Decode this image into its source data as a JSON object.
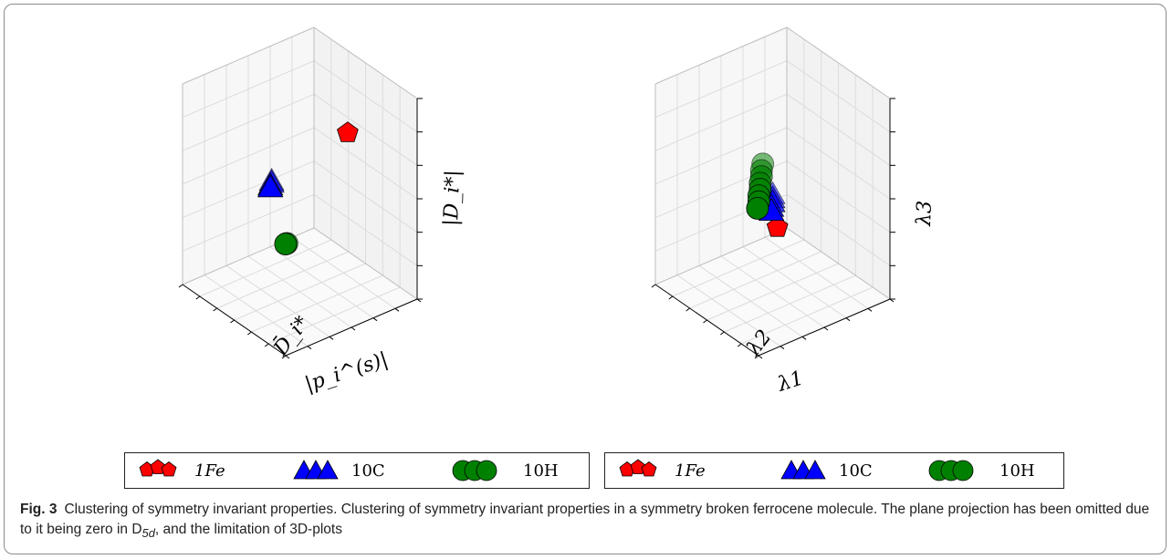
{
  "chart_data": [
    {
      "type": "scatter3d",
      "axis_labels": {
        "x": "|p_i^(s)|",
        "y": "D̄_i*",
        "z": "|D_i*|"
      },
      "grid": true,
      "series": [
        {
          "name": "1Fe",
          "marker": "pentagon",
          "color": "#ff0000",
          "points": [
            [
              0.45,
              0.9,
              0.92
            ]
          ]
        },
        {
          "name": "10C",
          "marker": "triangle",
          "color": "#0000ff",
          "points": [
            [
              0.95,
              0.8,
              0.78
            ],
            [
              0.95,
              0.8,
              0.77
            ],
            [
              0.96,
              0.8,
              0.76
            ],
            [
              0.96,
              0.8,
              0.75
            ]
          ]
        },
        {
          "name": "10H",
          "marker": "circle",
          "color": "#008000",
          "points": [
            [
              0.3,
              0.12,
              0.05
            ],
            [
              0.31,
              0.12,
              0.05
            ]
          ]
        }
      ]
    },
    {
      "type": "scatter3d",
      "axis_labels": {
        "x": "λ1",
        "y": "λ2",
        "z": "λ3"
      },
      "grid": true,
      "series": [
        {
          "name": "1Fe",
          "marker": "pentagon",
          "color": "#ff0000",
          "points": [
            [
              0.15,
              0.1,
              0.08
            ]
          ]
        },
        {
          "name": "10C",
          "marker": "triangle",
          "color": "#0000ff",
          "points": [
            [
              0.5,
              0.5,
              0.48
            ],
            [
              0.5,
              0.5,
              0.46
            ],
            [
              0.5,
              0.5,
              0.44
            ],
            [
              0.51,
              0.5,
              0.42
            ],
            [
              0.51,
              0.5,
              0.4
            ]
          ]
        },
        {
          "name": "10H",
          "marker": "circle",
          "color": "#008000",
          "points": [
            [
              0.85,
              0.85,
              0.86
            ],
            [
              0.86,
              0.85,
              0.83
            ],
            [
              0.86,
              0.85,
              0.8
            ],
            [
              0.87,
              0.85,
              0.77
            ],
            [
              0.87,
              0.85,
              0.74
            ],
            [
              0.88,
              0.85,
              0.71
            ],
            [
              0.88,
              0.85,
              0.68
            ],
            [
              0.89,
              0.85,
              0.65
            ]
          ]
        }
      ]
    }
  ],
  "legends": [
    {
      "items": [
        {
          "label": "1Fe"
        },
        {
          "label": "10C"
        },
        {
          "label": "10H"
        }
      ]
    },
    {
      "items": [
        {
          "label": "1Fe"
        },
        {
          "label": "10C"
        },
        {
          "label": "10H"
        }
      ]
    }
  ],
  "caption": {
    "label": "Fig. 3",
    "text": "Clustering of symmetry invariant properties. Clustering of symmetry invariant properties in a symmetry broken ferrocene molecule. The plane projection has been omitted due to it being zero in D",
    "sub": "5d",
    "tail": ", and the limitation of 3D-plots"
  }
}
